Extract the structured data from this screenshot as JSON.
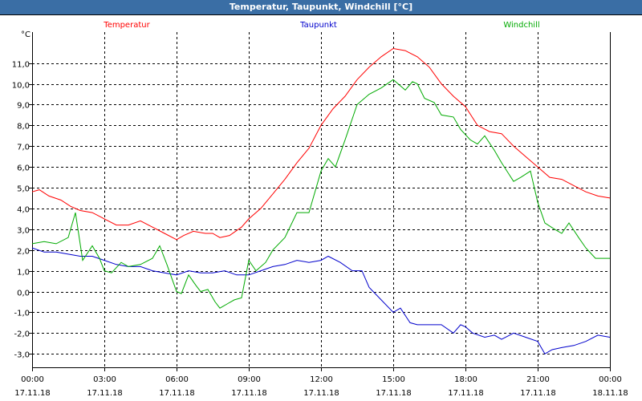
{
  "window": {
    "title": "Temperatur, Taupunkt, Windchill [°C]"
  },
  "chart_data": {
    "type": "line",
    "title": "Temperatur, Taupunkt, Windchill [°C]",
    "ylabel": "°C",
    "ylim": [
      -3.5,
      11.5
    ],
    "y_ticks": [
      "11,0",
      "10,0",
      "9,0",
      "8,0",
      "7,0",
      "6,0",
      "5,0",
      "4,0",
      "3,0",
      "2,0",
      "1,0",
      "0,0",
      "-1,0",
      "-2,0",
      "-3,0"
    ],
    "y_tick_values": [
      11,
      10,
      9,
      8,
      7,
      6,
      5,
      4,
      3,
      2,
      1,
      0,
      -1,
      -2,
      -3
    ],
    "xlim_hours": [
      0,
      24
    ],
    "x_ticks": [
      {
        "time": "00:00",
        "date": "17.11.18"
      },
      {
        "time": "03:00",
        "date": "17.11.18"
      },
      {
        "time": "06:00",
        "date": "17.11.18"
      },
      {
        "time": "09:00",
        "date": "17.11.18"
      },
      {
        "time": "12:00",
        "date": "17.11.18"
      },
      {
        "time": "15:00",
        "date": "17.11.18"
      },
      {
        "time": "18:00",
        "date": "17.11.18"
      },
      {
        "time": "21:00",
        "date": "17.11.18"
      },
      {
        "time": "00:00",
        "date": "18.11.18"
      }
    ],
    "grid": true,
    "legend_position": "top",
    "series": [
      {
        "name": "Temperatur",
        "color": "#ff0000",
        "points": [
          [
            0,
            4.8
          ],
          [
            0.3,
            4.9
          ],
          [
            0.7,
            4.6
          ],
          [
            1.2,
            4.4
          ],
          [
            1.6,
            4.1
          ],
          [
            2.0,
            3.9
          ],
          [
            2.5,
            3.8
          ],
          [
            3.0,
            3.5
          ],
          [
            3.5,
            3.2
          ],
          [
            4.0,
            3.2
          ],
          [
            4.5,
            3.4
          ],
          [
            5.0,
            3.1
          ],
          [
            5.5,
            2.8
          ],
          [
            6.0,
            2.5
          ],
          [
            6.3,
            2.7
          ],
          [
            6.7,
            2.9
          ],
          [
            7.2,
            2.8
          ],
          [
            7.5,
            2.8
          ],
          [
            7.8,
            2.6
          ],
          [
            8.2,
            2.7
          ],
          [
            8.7,
            3.1
          ],
          [
            9.0,
            3.5
          ],
          [
            9.5,
            4.0
          ],
          [
            10.0,
            4.7
          ],
          [
            10.5,
            5.4
          ],
          [
            11.0,
            6.2
          ],
          [
            11.5,
            6.9
          ],
          [
            12.0,
            8.0
          ],
          [
            12.5,
            8.8
          ],
          [
            13.0,
            9.4
          ],
          [
            13.5,
            10.2
          ],
          [
            14.0,
            10.8
          ],
          [
            14.5,
            11.3
          ],
          [
            15.0,
            11.7
          ],
          [
            15.5,
            11.6
          ],
          [
            16.0,
            11.3
          ],
          [
            16.5,
            10.8
          ],
          [
            17.0,
            10.0
          ],
          [
            17.5,
            9.4
          ],
          [
            18.0,
            8.9
          ],
          [
            18.5,
            8.0
          ],
          [
            19.0,
            7.7
          ],
          [
            19.5,
            7.6
          ],
          [
            20.0,
            7.0
          ],
          [
            20.5,
            6.5
          ],
          [
            21.0,
            6.0
          ],
          [
            21.5,
            5.5
          ],
          [
            22.0,
            5.4
          ],
          [
            22.5,
            5.1
          ],
          [
            23.0,
            4.8
          ],
          [
            23.5,
            4.6
          ],
          [
            24.0,
            4.5
          ]
        ]
      },
      {
        "name": "Taupunkt",
        "color": "#0000cc",
        "points": [
          [
            0,
            2.1
          ],
          [
            0.5,
            1.9
          ],
          [
            1.0,
            1.9
          ],
          [
            1.5,
            1.8
          ],
          [
            2.0,
            1.7
          ],
          [
            2.5,
            1.7
          ],
          [
            3.0,
            1.5
          ],
          [
            3.5,
            1.3
          ],
          [
            4.0,
            1.2
          ],
          [
            4.5,
            1.2
          ],
          [
            5.0,
            1.0
          ],
          [
            5.5,
            0.9
          ],
          [
            6.0,
            0.8
          ],
          [
            6.5,
            1.0
          ],
          [
            7.0,
            0.9
          ],
          [
            7.5,
            0.9
          ],
          [
            8.0,
            1.0
          ],
          [
            8.5,
            0.8
          ],
          [
            9.0,
            0.8
          ],
          [
            9.5,
            1.0
          ],
          [
            10.0,
            1.2
          ],
          [
            10.5,
            1.3
          ],
          [
            11.0,
            1.5
          ],
          [
            11.5,
            1.4
          ],
          [
            12.0,
            1.5
          ],
          [
            12.3,
            1.7
          ],
          [
            12.8,
            1.4
          ],
          [
            13.3,
            1.0
          ],
          [
            13.7,
            1.0
          ],
          [
            14.0,
            0.2
          ],
          [
            14.5,
            -0.4
          ],
          [
            15.0,
            -1.0
          ],
          [
            15.3,
            -0.8
          ],
          [
            15.7,
            -1.5
          ],
          [
            16.0,
            -1.6
          ],
          [
            16.5,
            -1.6
          ],
          [
            17.0,
            -1.6
          ],
          [
            17.5,
            -2.0
          ],
          [
            17.8,
            -1.6
          ],
          [
            18.0,
            -1.7
          ],
          [
            18.3,
            -2.0
          ],
          [
            18.8,
            -2.2
          ],
          [
            19.2,
            -2.1
          ],
          [
            19.5,
            -2.3
          ],
          [
            20.0,
            -2.0
          ],
          [
            20.5,
            -2.2
          ],
          [
            21.0,
            -2.4
          ],
          [
            21.3,
            -3.0
          ],
          [
            21.6,
            -2.8
          ],
          [
            22.0,
            -2.7
          ],
          [
            22.5,
            -2.6
          ],
          [
            23.0,
            -2.4
          ],
          [
            23.5,
            -2.1
          ],
          [
            24.0,
            -2.2
          ]
        ]
      },
      {
        "name": "Windchill",
        "color": "#00aa00",
        "points": [
          [
            0,
            2.3
          ],
          [
            0.5,
            2.4
          ],
          [
            1.0,
            2.3
          ],
          [
            1.5,
            2.6
          ],
          [
            1.8,
            3.8
          ],
          [
            2.1,
            1.5
          ],
          [
            2.5,
            2.2
          ],
          [
            2.8,
            1.6
          ],
          [
            3.0,
            1.0
          ],
          [
            3.3,
            0.9
          ],
          [
            3.7,
            1.4
          ],
          [
            4.0,
            1.2
          ],
          [
            4.5,
            1.3
          ],
          [
            5.0,
            1.6
          ],
          [
            5.3,
            2.2
          ],
          [
            5.6,
            1.3
          ],
          [
            6.0,
            0.0
          ],
          [
            6.2,
            -0.1
          ],
          [
            6.5,
            0.8
          ],
          [
            6.8,
            0.3
          ],
          [
            7.0,
            0.0
          ],
          [
            7.3,
            0.1
          ],
          [
            7.6,
            -0.5
          ],
          [
            7.8,
            -0.8
          ],
          [
            8.1,
            -0.6
          ],
          [
            8.4,
            -0.4
          ],
          [
            8.7,
            -0.3
          ],
          [
            9.0,
            1.5
          ],
          [
            9.3,
            1.0
          ],
          [
            9.7,
            1.4
          ],
          [
            10.0,
            2.0
          ],
          [
            10.5,
            2.6
          ],
          [
            11.0,
            3.8
          ],
          [
            11.5,
            3.8
          ],
          [
            12.0,
            5.8
          ],
          [
            12.3,
            6.4
          ],
          [
            12.6,
            6.0
          ],
          [
            13.0,
            7.3
          ],
          [
            13.5,
            9.0
          ],
          [
            14.0,
            9.5
          ],
          [
            14.5,
            9.8
          ],
          [
            15.0,
            10.2
          ],
          [
            15.2,
            10.0
          ],
          [
            15.5,
            9.7
          ],
          [
            15.8,
            10.1
          ],
          [
            16.0,
            10.0
          ],
          [
            16.3,
            9.3
          ],
          [
            16.7,
            9.1
          ],
          [
            17.0,
            8.5
          ],
          [
            17.5,
            8.4
          ],
          [
            17.8,
            7.8
          ],
          [
            18.2,
            7.3
          ],
          [
            18.5,
            7.1
          ],
          [
            18.8,
            7.5
          ],
          [
            19.2,
            6.8
          ],
          [
            19.5,
            6.2
          ],
          [
            20.0,
            5.3
          ],
          [
            20.3,
            5.5
          ],
          [
            20.7,
            5.8
          ],
          [
            21.0,
            4.3
          ],
          [
            21.3,
            3.3
          ],
          [
            21.7,
            3.0
          ],
          [
            22.0,
            2.8
          ],
          [
            22.3,
            3.3
          ],
          [
            22.7,
            2.6
          ],
          [
            23.0,
            2.1
          ],
          [
            23.4,
            1.6
          ],
          [
            23.7,
            1.6
          ],
          [
            24.0,
            1.6
          ]
        ]
      }
    ]
  }
}
